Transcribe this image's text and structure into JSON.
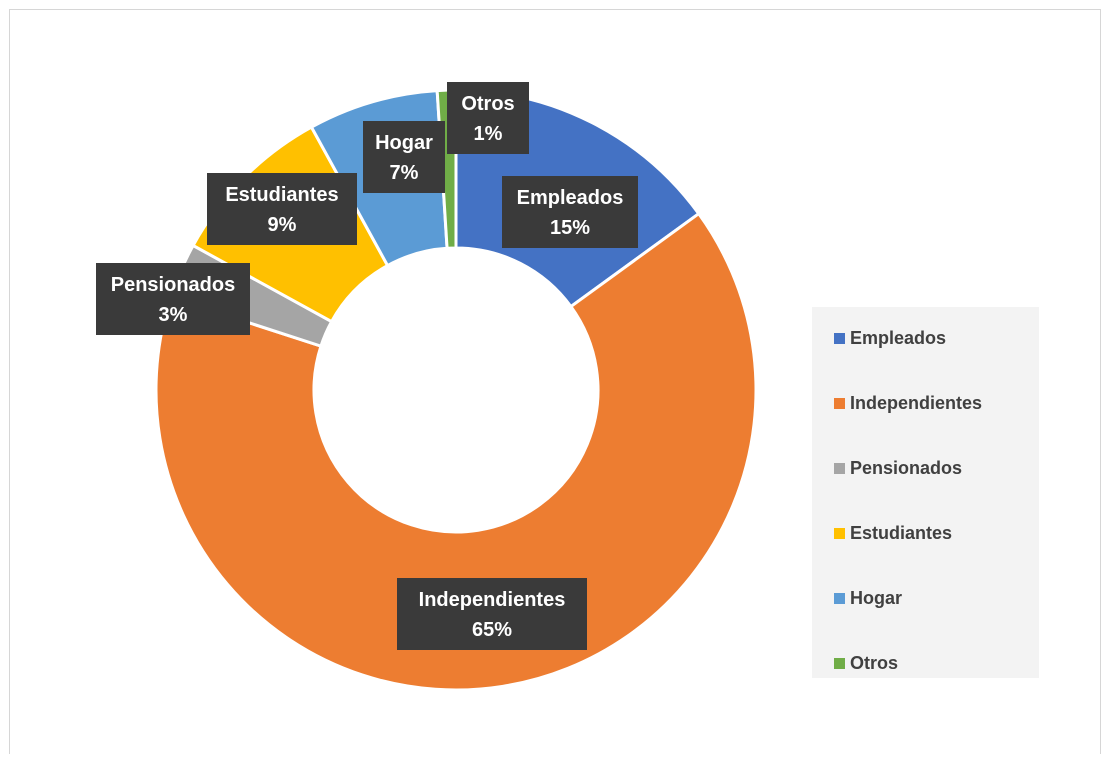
{
  "chart_data": {
    "type": "pie",
    "variant": "doughnut",
    "title": "",
    "categories": [
      "Empleados",
      "Independientes",
      "Pensionados",
      "Estudiantes",
      "Hogar",
      "Otros"
    ],
    "values": [
      15,
      65,
      3,
      9,
      7,
      1
    ],
    "value_labels": [
      "15%",
      "65%",
      "3%",
      "9%",
      "7%",
      "1%"
    ],
    "colors": [
      "#4472C4",
      "#ED7D31",
      "#A5A5A5",
      "#FFC000",
      "#5B9BD5",
      "#70AD47"
    ],
    "legend_placement": "right",
    "label_box_color": "#3a3a3a"
  }
}
